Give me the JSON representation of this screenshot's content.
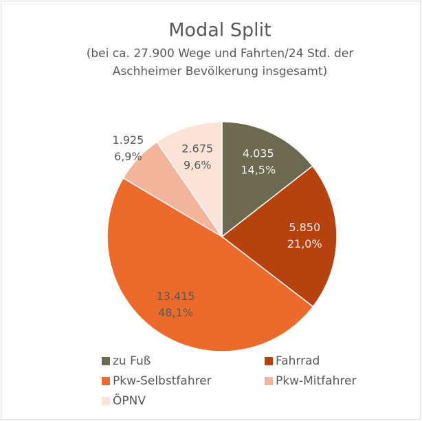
{
  "chart_data": {
    "type": "pie",
    "title": "Modal Split",
    "subtitle": [
      "(bei ca. 27.900 Wege und Fahrten/24 Std. der",
      "Aschheimer Bevölkerung insgesamt)"
    ],
    "categories": [
      "zu Fuß",
      "Fahrrad",
      "Pkw-Selbstfahrer",
      "Pkw-Mitfahrer",
      "ÖPNV"
    ],
    "values": [
      4035,
      5850,
      13415,
      1925,
      2675
    ],
    "value_labels": [
      "4.035",
      "5.850",
      "13.415",
      "1.925",
      "2.675"
    ],
    "percents": [
      14.5,
      21.0,
      48.1,
      6.9,
      9.6
    ],
    "percent_labels": [
      "14,5%",
      "21,0%",
      "48,1%",
      "6,9%",
      "9,6%"
    ],
    "colors": [
      "#6b6a50",
      "#b5420f",
      "#ec6a2b",
      "#f2b59c",
      "#fbe3d8"
    ],
    "legend": "bottom"
  }
}
